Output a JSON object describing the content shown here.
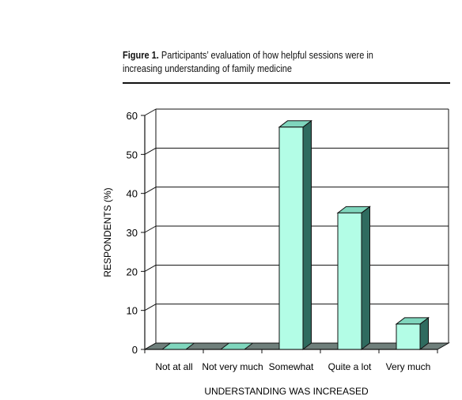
{
  "caption": {
    "figure_label": "Figure 1.",
    "text": "Participants’ evaluation of how helpful sessions were in increasing understanding of family medicine"
  },
  "chart_data": {
    "type": "bar",
    "categories": [
      "Not at all",
      "Not very much",
      "Somewhat",
      "Quite a lot",
      "Very much"
    ],
    "values": [
      0,
      0,
      57,
      35,
      6.5
    ],
    "xlabel": "UNDERSTANDING WAS INCREASED",
    "ylabel": "RESPONDENTS (%)",
    "ylim": [
      0,
      60
    ],
    "yticks": [
      0,
      10,
      20,
      30,
      40,
      50,
      60
    ],
    "grid": true,
    "colors": {
      "bar_front": "#b3fde6",
      "bar_side": "#2f6b5f",
      "bar_top": "#7fd6bd",
      "floor": "#6f7f7b"
    }
  }
}
